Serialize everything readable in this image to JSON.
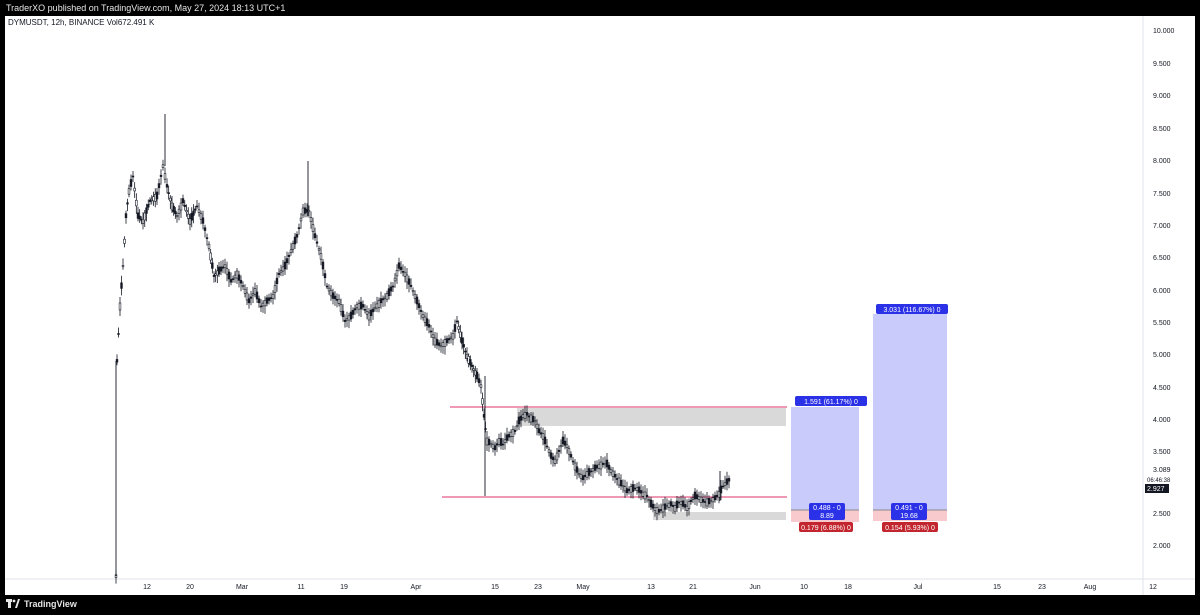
{
  "publish": {
    "text": "TraderXO published on TradingView.com, May 27, 2024 18:13 UTC+1"
  },
  "symbol": {
    "name": "DYMUSDT, 12h, BINANCE",
    "vol_label": "Vol",
    "vol_value": "672.491 K"
  },
  "price_axis": {
    "ticks": [
      "10.000",
      "9.500",
      "9.000",
      "8.500",
      "8.000",
      "7.500",
      "7.000",
      "6.500",
      "6.000",
      "5.500",
      "5.000",
      "4.500",
      "4.000",
      "3.500",
      "3.089",
      "2.500",
      "2.000"
    ],
    "current_price": "2.927",
    "countdown": "06:46:38"
  },
  "time_axis": {
    "ticks": [
      "12",
      "20",
      "Mar",
      "11",
      "19",
      "Apr",
      "15",
      "23",
      "May",
      "13",
      "21",
      "Jun",
      "10",
      "18",
      "Jul",
      "15",
      "23",
      "Aug",
      "12"
    ]
  },
  "positions": [
    {
      "target_label": "1.591 (61.17%) 0",
      "center_label": "0.488 - 0",
      "center_sub": "8.89",
      "stop_label": "0.179 (6.88%) 0"
    },
    {
      "target_label": "3.031 (116.67%) 0",
      "center_label": "0.491 - 0",
      "center_sub": "19.68",
      "stop_label": "0.154 (5.93%) 0"
    }
  ],
  "brand": {
    "name": "TradingView"
  },
  "colors": {
    "up": "#131722",
    "down": "#131722",
    "target_zone": "#c9cbfb",
    "stop_zone": "#f8c9cd",
    "label_blue": "#2b31e6",
    "label_red": "#c2252e",
    "level_line": "#e0336b",
    "supply_zone": "#d9d9d9"
  }
}
